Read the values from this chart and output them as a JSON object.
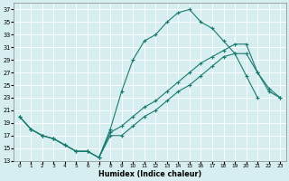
{
  "title": "",
  "xlabel": "Humidex (Indice chaleur)",
  "ylabel": "",
  "background_color": "#d6eef0",
  "grid_color": "#ffffff",
  "line_color": "#1a7a6e",
  "xlim": [
    -0.5,
    23.5
  ],
  "ylim": [
    13,
    38
  ],
  "yticks": [
    13,
    15,
    17,
    19,
    21,
    23,
    25,
    27,
    29,
    31,
    33,
    35,
    37
  ],
  "xticks": [
    0,
    1,
    2,
    3,
    4,
    5,
    6,
    7,
    8,
    9,
    10,
    11,
    12,
    13,
    14,
    15,
    16,
    17,
    18,
    19,
    20,
    21,
    22,
    23
  ],
  "line1_x": [
    0,
    1,
    2,
    3,
    4,
    5,
    6,
    7,
    8,
    9,
    10,
    11,
    12,
    13,
    14,
    15,
    16,
    17,
    18,
    19,
    20,
    21
  ],
  "line1_y": [
    20.0,
    18.0,
    17.0,
    16.5,
    15.5,
    14.5,
    14.5,
    13.5,
    18.0,
    24.0,
    29.0,
    32.0,
    33.0,
    35.0,
    36.5,
    37.0,
    35.0,
    34.0,
    32.0,
    30.0,
    26.5,
    23.0
  ],
  "line2_x": [
    0,
    1,
    2,
    3,
    4,
    5,
    6,
    7,
    8,
    9,
    10,
    11,
    12,
    13,
    14,
    15,
    16,
    17,
    18,
    19,
    20,
    21,
    22,
    23
  ],
  "line2_y": [
    20.0,
    18.0,
    17.0,
    16.5,
    15.5,
    14.5,
    14.5,
    13.5,
    17.5,
    18.5,
    20.0,
    21.5,
    22.5,
    24.0,
    25.5,
    27.0,
    28.5,
    29.5,
    30.5,
    31.5,
    31.5,
    27.0,
    24.0,
    23.0
  ],
  "line3_x": [
    0,
    1,
    2,
    3,
    4,
    5,
    6,
    7,
    8,
    9,
    10,
    11,
    12,
    13,
    14,
    15,
    16,
    17,
    18,
    19,
    20,
    21,
    22,
    23
  ],
  "line3_y": [
    20.0,
    18.0,
    17.0,
    16.5,
    15.5,
    14.5,
    14.5,
    13.5,
    17.0,
    17.0,
    18.5,
    20.0,
    21.0,
    22.5,
    24.0,
    25.0,
    26.5,
    28.0,
    29.5,
    30.0,
    30.0,
    27.0,
    24.5,
    23.0
  ]
}
